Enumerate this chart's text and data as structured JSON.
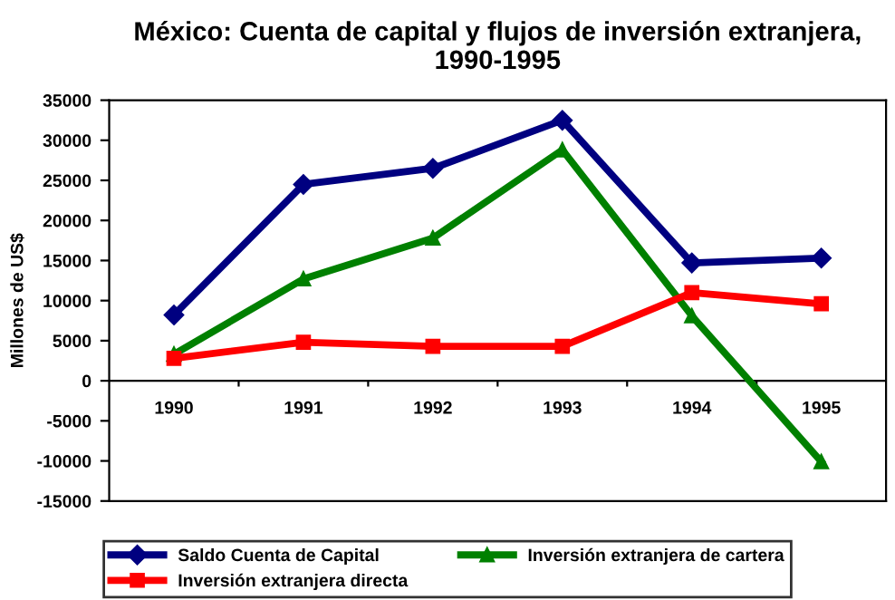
{
  "chart_data": {
    "type": "line",
    "title": "México: Cuenta de capital y flujos de inversión extranjera, 1990-1995",
    "ylabel": "Millones de US$",
    "categories": [
      "1990",
      "1991",
      "1992",
      "1993",
      "1994",
      "1995"
    ],
    "series": [
      {
        "name": "Saldo Cuenta de Capital",
        "color": "#000080",
        "marker": "diamond",
        "values": [
          8200,
          24500,
          26500,
          32500,
          14700,
          15300
        ]
      },
      {
        "name": "Inversión extranjera directa",
        "color": "#ff0000",
        "marker": "square",
        "values": [
          2800,
          4800,
          4300,
          4300,
          11000,
          9600
        ]
      },
      {
        "name": "Inversión extranjera de cartera",
        "color": "#008000",
        "marker": "triangle",
        "values": [
          3300,
          12700,
          17800,
          28800,
          8100,
          -10100
        ]
      }
    ],
    "ylim": [
      -15000,
      35000
    ],
    "yticks": [
      -15000,
      -10000,
      -5000,
      0,
      5000,
      10000,
      15000,
      20000,
      25000,
      30000,
      35000
    ],
    "grid": false,
    "legend": "bottom",
    "line_style": "solid"
  }
}
